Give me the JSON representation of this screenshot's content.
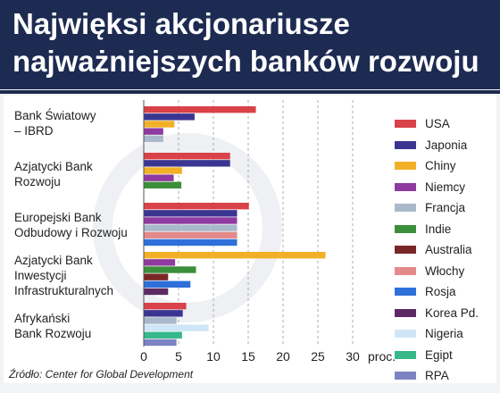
{
  "header": {
    "title_line1": "Najwięksi akcjonariusze",
    "title_line2": "najważniejszych banków rozwoju"
  },
  "source": "Źródło: Center for Global Development",
  "chart_data": {
    "type": "bar",
    "orientation": "horizontal",
    "categories": [
      [
        "Bank Światowy",
        "– IBRD"
      ],
      [
        "Azjatycki Bank",
        "Rozwoju"
      ],
      [
        "Europejski Bank",
        "Odbudowy i Rozwoju"
      ],
      [
        "Azjatycki Bank",
        "Inwestycji",
        "Infrastrukturalnych"
      ],
      [
        "Afrykański",
        "Bank Rozwoju"
      ]
    ],
    "series": [
      {
        "name": "USA",
        "color": "#d94248",
        "values": [
          16.1,
          12.4,
          15.1,
          null,
          6.1
        ]
      },
      {
        "name": "Japonia",
        "color": "#3b3592",
        "values": [
          7.3,
          12.4,
          13.4,
          null,
          5.6
        ]
      },
      {
        "name": "Chiny",
        "color": "#f2b027",
        "values": [
          4.4,
          5.5,
          null,
          26.1,
          null
        ]
      },
      {
        "name": "Niemcy",
        "color": "#8f3aa0",
        "values": [
          2.8,
          4.3,
          13.4,
          4.5,
          null
        ]
      },
      {
        "name": "Francja",
        "color": "#a9b9cb",
        "values": [
          2.8,
          null,
          13.4,
          null,
          4.7
        ]
      },
      {
        "name": "Indie",
        "color": "#3b8f3b",
        "values": [
          null,
          5.4,
          null,
          7.5,
          null
        ]
      },
      {
        "name": "Australia",
        "color": "#7a2626",
        "values": [
          null,
          null,
          null,
          3.5,
          null
        ]
      },
      {
        "name": "Włochy",
        "color": "#e38a8a",
        "values": [
          null,
          null,
          13.4,
          null,
          null
        ]
      },
      {
        "name": "Rosja",
        "color": "#2e6fd9",
        "values": [
          null,
          null,
          13.4,
          6.7,
          null
        ]
      },
      {
        "name": "Korea Pd.",
        "color": "#5b2a63",
        "values": [
          null,
          null,
          null,
          3.5,
          null
        ]
      },
      {
        "name": "Nigeria",
        "color": "#cfe6f7",
        "values": [
          null,
          null,
          null,
          null,
          9.3
        ]
      },
      {
        "name": "Egipt",
        "color": "#36b88a",
        "values": [
          null,
          null,
          null,
          null,
          5.5
        ]
      },
      {
        "name": "RPA",
        "color": "#7d83c2",
        "values": [
          null,
          null,
          null,
          null,
          4.7
        ]
      }
    ],
    "xlim": [
      0,
      32
    ],
    "xticks": [
      0,
      5,
      10,
      15,
      20,
      25,
      30
    ],
    "xlabel": "proc.",
    "grid": "vertical-dashed",
    "legend_position": "right"
  }
}
